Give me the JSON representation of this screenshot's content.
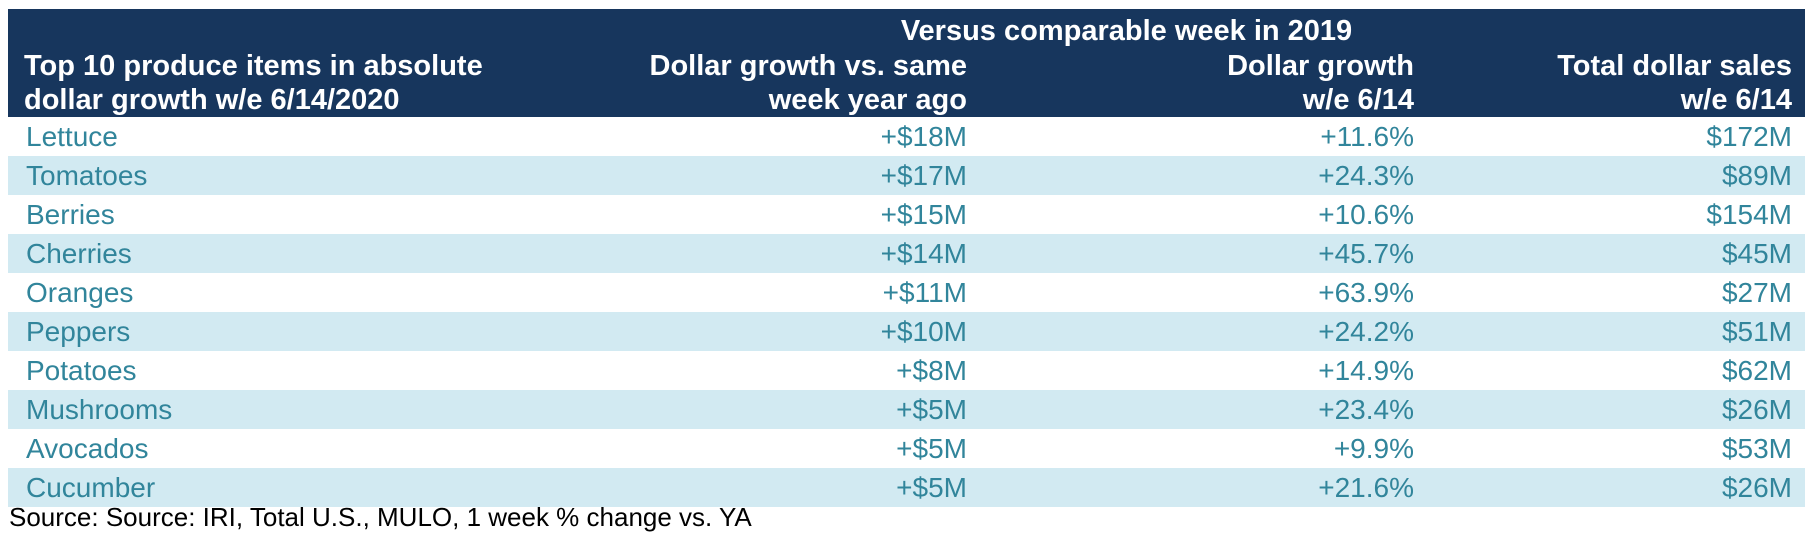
{
  "chart_data": {
    "type": "table",
    "super_header": "Versus comparable week in 2019",
    "columns": [
      [
        "Top 10 produce items in absolute",
        "dollar growth w/e 6/14/2020"
      ],
      [
        "Dollar growth vs. same",
        "week year ago"
      ],
      [
        "Dollar growth",
        "w/e 6/14"
      ],
      [
        "Total dollar sales",
        "w/e 6/14"
      ]
    ],
    "rows": [
      [
        "Lettuce",
        "+$18M",
        "+11.6%",
        "$172M"
      ],
      [
        "Tomatoes",
        "+$17M",
        "+24.3%",
        "$89M"
      ],
      [
        "Berries",
        "+$15M",
        "+10.6%",
        "$154M"
      ],
      [
        "Cherries",
        "+$14M",
        "+45.7%",
        "$45M"
      ],
      [
        "Oranges",
        "+$11M",
        "+63.9%",
        "$27M"
      ],
      [
        "Peppers",
        "+$10M",
        "+24.2%",
        "$51M"
      ],
      [
        "Potatoes",
        "+$8M",
        "+14.9%",
        "$62M"
      ],
      [
        "Mushrooms",
        "+$5M",
        "+23.4%",
        "$26M"
      ],
      [
        "Avocados",
        "+$5M",
        "+9.9%",
        "$53M"
      ],
      [
        "Cucumber",
        "+$5M",
        "+21.6%",
        "$26M"
      ]
    ],
    "source": "Source: Source: IRI, Total U.S., MULO, 1 week % change vs. YA"
  },
  "colors": {
    "header_bg": "#17365d",
    "header_text": "#ffffff",
    "row_text": "#31859b",
    "alt_row_bg": "#d2eaf2"
  }
}
